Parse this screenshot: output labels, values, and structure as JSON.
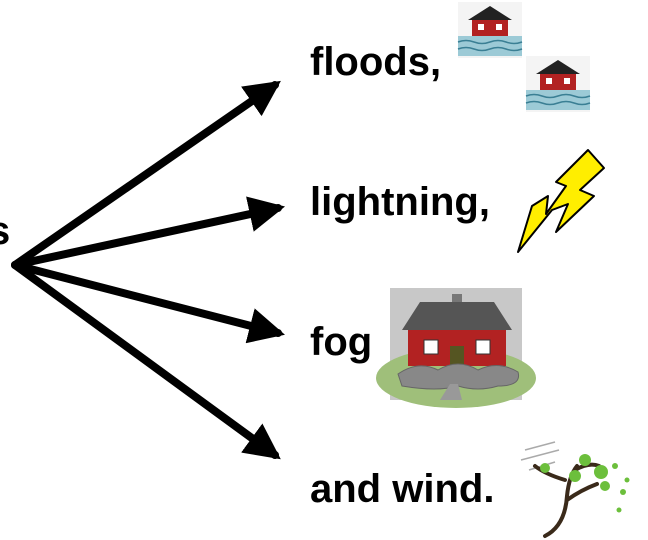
{
  "source_text": "s",
  "branches": [
    {
      "label": "floods,"
    },
    {
      "label": "lightning,"
    },
    {
      "label": "fog"
    },
    {
      "label": "and wind."
    }
  ]
}
